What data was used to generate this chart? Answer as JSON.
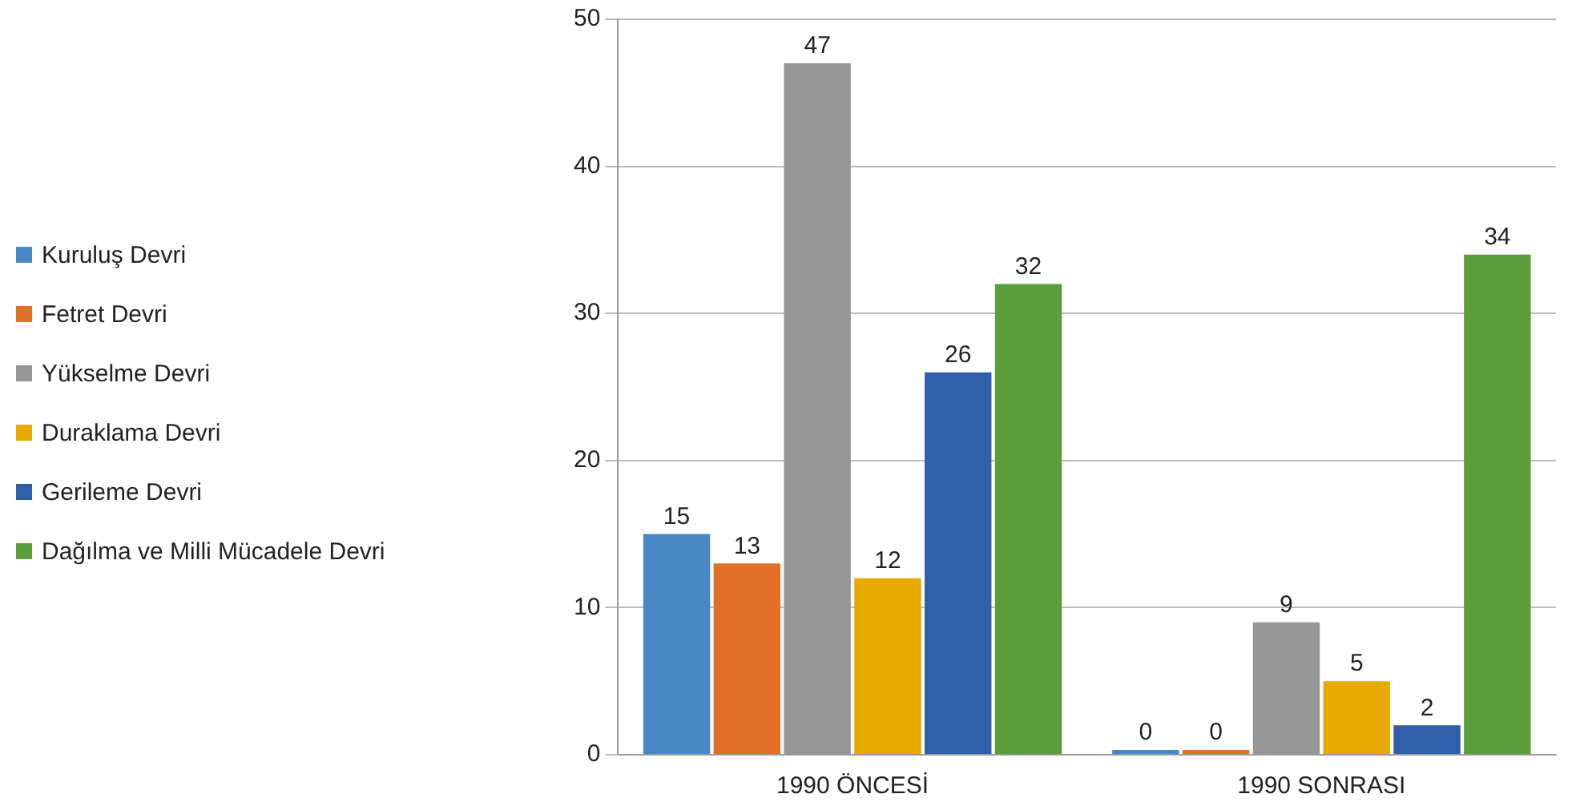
{
  "chart_data": {
    "type": "bar",
    "categories": [
      "1990 ÖNCESİ",
      "1990 SONRASI"
    ],
    "series": [
      {
        "name": "Kuruluş Devri",
        "color": "#4a86c5",
        "values": [
          15,
          0
        ]
      },
      {
        "name": "Fetret Devri",
        "color": "#e07028",
        "values": [
          13,
          0
        ]
      },
      {
        "name": "Yükselme Devri",
        "color": "#969696",
        "values": [
          47,
          9
        ]
      },
      {
        "name": "Duraklama Devri",
        "color": "#e6aa00",
        "values": [
          12,
          5
        ]
      },
      {
        "name": "Gerileme Devri",
        "color": "#2e5fa8",
        "values": [
          26,
          2
        ]
      },
      {
        "name": "Dağılma ve Milli Mücadele Devri",
        "color": "#5a9e3c",
        "values": [
          32,
          34
        ]
      }
    ],
    "ylim": [
      0,
      50
    ],
    "yticks": [
      0,
      10,
      20,
      30,
      40,
      50
    ],
    "grid": "y",
    "legend": "left",
    "data_labels": true
  }
}
